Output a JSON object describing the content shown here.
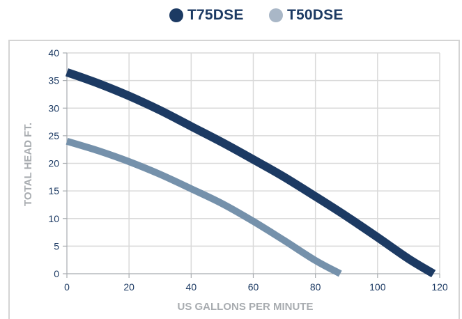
{
  "chart_data": {
    "type": "line",
    "xlabel": "US GALLONS PER MINUTE",
    "ylabel": "TOTAL HEAD FT.",
    "xlim": [
      0,
      120
    ],
    "ylim": [
      0,
      40
    ],
    "x_ticks": [
      0,
      20,
      40,
      60,
      80,
      100,
      120
    ],
    "y_ticks": [
      0,
      5,
      10,
      15,
      20,
      25,
      30,
      35,
      40
    ],
    "grid": true,
    "legend_position": "top-center",
    "series": [
      {
        "name": "T75DSE",
        "color": "#1c3a63",
        "x": [
          0,
          10,
          20,
          30,
          40,
          50,
          60,
          70,
          80,
          90,
          100,
          110,
          118
        ],
        "y": [
          36.5,
          34.5,
          32.2,
          29.6,
          26.7,
          23.8,
          20.7,
          17.5,
          14.0,
          10.4,
          6.6,
          2.7,
          0
        ]
      },
      {
        "name": "T50DSE",
        "color": "#7591ab",
        "x": [
          0,
          10,
          20,
          30,
          40,
          50,
          60,
          70,
          80,
          88
        ],
        "y": [
          24.0,
          22.3,
          20.3,
          18.0,
          15.4,
          12.7,
          9.5,
          6.0,
          2.4,
          0
        ]
      }
    ]
  }
}
